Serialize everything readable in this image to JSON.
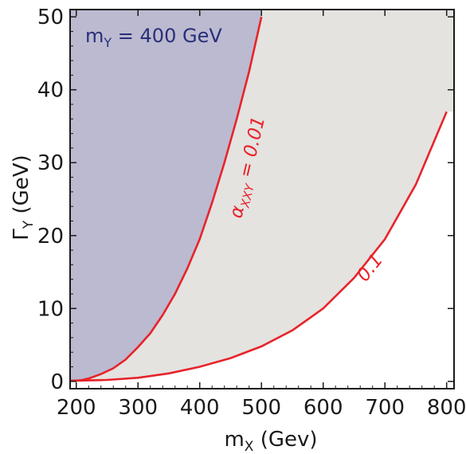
{
  "chart_data": {
    "type": "area",
    "x_axis": {
      "label_main": "m",
      "label_sub": "X",
      "label_rest": " (Gev)",
      "range": [
        190,
        812
      ],
      "ticks": [
        200,
        300,
        400,
        500,
        600,
        700,
        800
      ]
    },
    "y_axis": {
      "label_main": "Γ",
      "label_sub": "Y",
      "label_rest": " (GeV)",
      "range": [
        -1,
        51
      ],
      "ticks": [
        0,
        10,
        20,
        30,
        40,
        50
      ]
    },
    "grid": false,
    "region_label": {
      "main": "m",
      "sub": "Y",
      "rest": " = 400 GeV"
    },
    "series": [
      {
        "label_main": "α",
        "label_sub": "XXY",
        "label_rest": " = 0.01",
        "color": "#e8232a",
        "x": [
          190,
          200,
          210,
          220,
          240,
          260,
          280,
          300,
          320,
          340,
          360,
          380,
          400,
          420,
          440,
          460,
          480,
          500
        ],
        "y": [
          0.1,
          0.1,
          0.2,
          0.4,
          1.0,
          1.8,
          3.0,
          4.7,
          6.6,
          9.1,
          12.0,
          15.5,
          19.5,
          24.5,
          30.0,
          36.0,
          42.5,
          50.0
        ]
      },
      {
        "label_main": "0.1",
        "label_sub": "",
        "label_rest": "",
        "color": "#e8232a",
        "x": [
          190,
          200,
          250,
          300,
          350,
          400,
          450,
          500,
          550,
          600,
          650,
          700,
          750,
          800
        ],
        "y": [
          0.1,
          0.1,
          0.2,
          0.5,
          1.1,
          2.0,
          3.2,
          4.8,
          7.0,
          10.0,
          14.2,
          19.5,
          27.0,
          37.0
        ]
      }
    ],
    "colors": {
      "excluded_region": "#bbbad0",
      "allowed_band": "#e4e3e0",
      "curve": "#e8232a",
      "frame": "#1a1a1a",
      "region_label": "#2a2f7a"
    }
  }
}
